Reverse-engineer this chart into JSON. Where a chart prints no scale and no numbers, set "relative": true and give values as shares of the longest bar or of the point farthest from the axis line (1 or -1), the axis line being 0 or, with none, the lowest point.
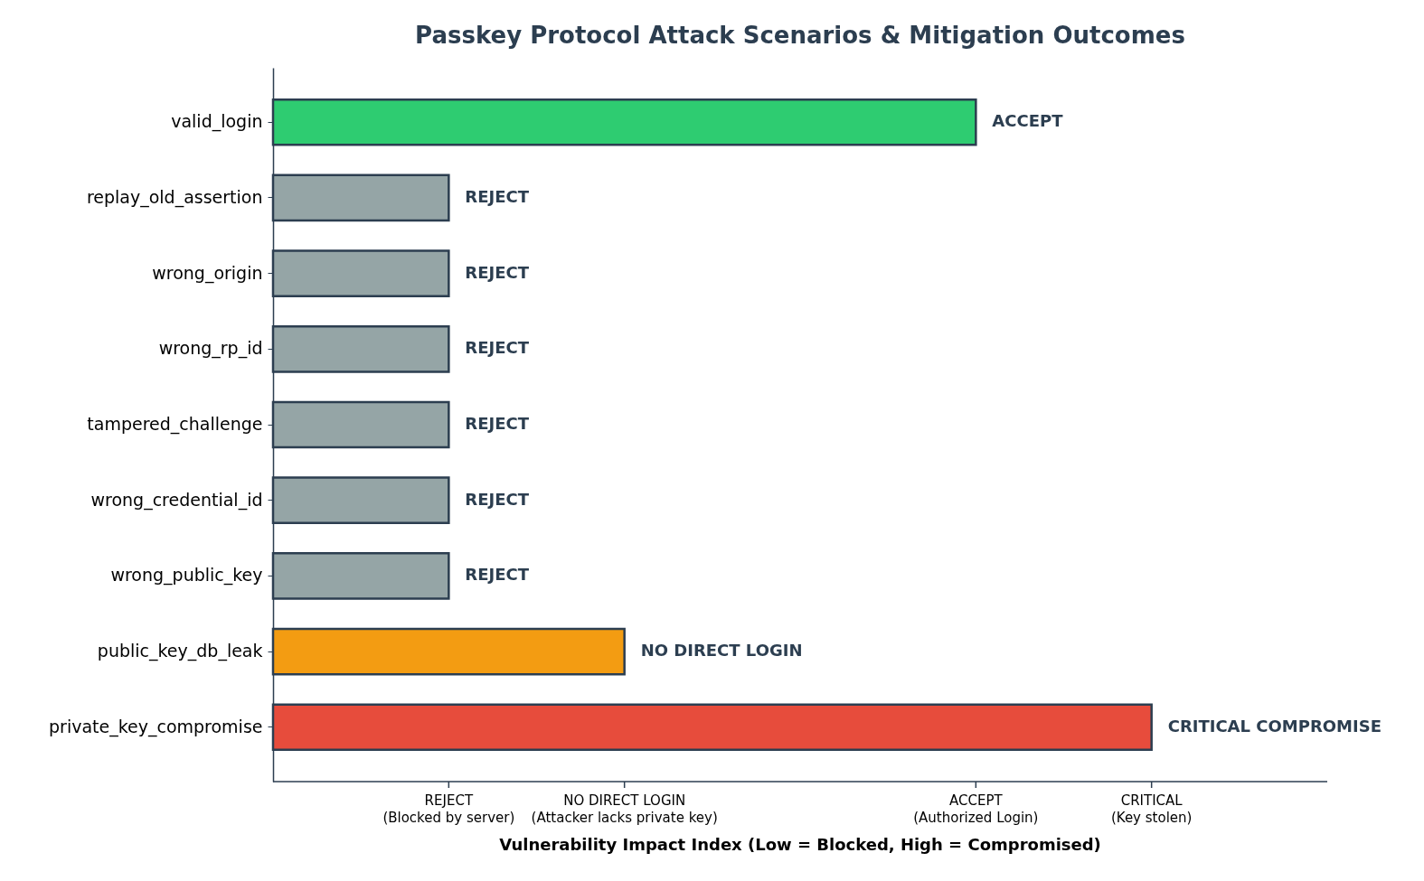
{
  "chart_data": {
    "type": "bar",
    "orientation": "horizontal",
    "relative": true,
    "title": "Passkey Protocol Attack Scenarios & Mitigation Outcomes",
    "xlabel": "Vulnerability Impact Index (Low = Blocked, High = Compromised)",
    "categories": [
      "valid_login",
      "replay_old_assertion",
      "wrong_origin",
      "wrong_rp_id",
      "tampered_challenge",
      "wrong_credential_id",
      "wrong_public_key",
      "public_key_db_leak",
      "private_key_compromise"
    ],
    "values": [
      0.8,
      0.2,
      0.2,
      0.2,
      0.2,
      0.2,
      0.2,
      0.4,
      1
    ],
    "colors": [
      "#2ecc71",
      "#95a5a6",
      "#95a5a6",
      "#95a5a6",
      "#95a5a6",
      "#95a5a6",
      "#95a5a6",
      "#f39c12",
      "#e74c3c"
    ],
    "annotations": [
      {
        "text": "ACCEPT",
        "x": 0.8,
        "y": "valid_login"
      },
      {
        "text": "REJECT",
        "x": 0.2,
        "y": "replay_old_assertion"
      },
      {
        "text": "REJECT",
        "x": 0.2,
        "y": "wrong_origin"
      },
      {
        "text": "REJECT",
        "x": 0.2,
        "y": "wrong_rp_id"
      },
      {
        "text": "REJECT",
        "x": 0.2,
        "y": "tampered_challenge"
      },
      {
        "text": "REJECT",
        "x": 0.2,
        "y": "wrong_credential_id"
      },
      {
        "text": "REJECT",
        "x": 0.2,
        "y": "wrong_public_key"
      },
      {
        "text": "NO DIRECT LOGIN",
        "x": 0.4,
        "y": "public_key_db_leak"
      },
      {
        "text": "CRITICAL COMPROMISE",
        "x": 1,
        "y": "private_key_compromise"
      },
      {
        "text": "REJECT\n(Blocked by server)",
        "x": 0.2
      },
      {
        "text": "NO DIRECT LOGIN\n(Attacker lacks private key)",
        "x": 0.4
      },
      {
        "text": "ACCEPT\n(Authorized Login)",
        "x": 0.8
      },
      {
        "text": "CRITICAL\n(Key stolen)",
        "x": 1
      }
    ],
    "grid": false
  }
}
